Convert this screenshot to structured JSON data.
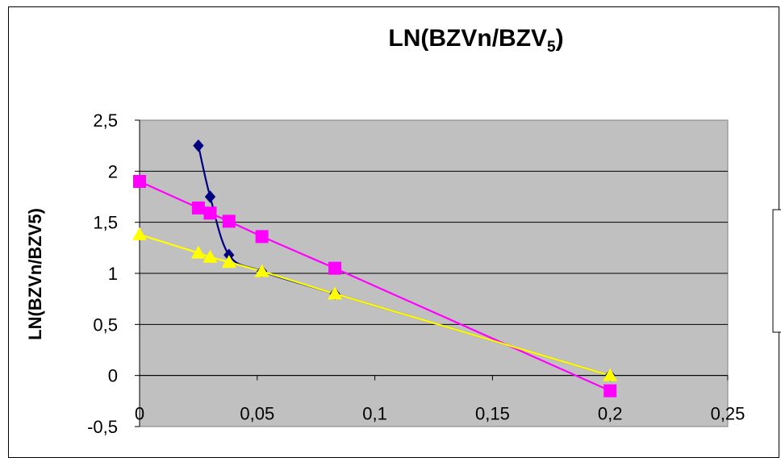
{
  "chart_data": {
    "type": "scatter",
    "title_main": "LN(BZVn/BZV",
    "title_sub": "5",
    "title_close": ")",
    "xlabel": "",
    "ylabel": "LN(BZVn/BZV5)",
    "xlim": [
      0,
      0.25
    ],
    "ylim": [
      -0.5,
      2.5
    ],
    "x_ticks": [
      0,
      0.05,
      0.1,
      0.15,
      0.2,
      0.25
    ],
    "x_tick_labels": [
      "0",
      "0,05",
      "0,1",
      "0,15",
      "0,2",
      "0,25"
    ],
    "y_ticks": [
      2.5,
      2,
      1.5,
      1,
      0.5,
      0,
      -0.5
    ],
    "y_tick_labels": [
      "2,5",
      "2",
      "1,5",
      "1",
      "0,5",
      "0",
      "-0,5"
    ],
    "grid": "horizontal",
    "plot_background": "#c0c0c0",
    "legend_placement": "right",
    "series": [
      {
        "marker": "diamond",
        "color": "#000080",
        "smooth": true,
        "points": [
          [
            0.025,
            2.25
          ],
          [
            0.03,
            1.75
          ],
          [
            0.038,
            1.18
          ],
          [
            0.052,
            1.02
          ],
          [
            0.083,
            0.8
          ],
          [
            0.2,
            0.0
          ]
        ]
      },
      {
        "marker": "square",
        "color": "#ff00ff",
        "smooth": false,
        "points": [
          [
            0,
            1.9
          ],
          [
            0.025,
            1.64
          ],
          [
            0.03,
            1.59
          ],
          [
            0.038,
            1.51
          ],
          [
            0.052,
            1.36
          ],
          [
            0.083,
            1.05
          ],
          [
            0.2,
            -0.15
          ]
        ]
      },
      {
        "marker": "triangle",
        "color": "#ffff00",
        "smooth": false,
        "points": [
          [
            0,
            1.38
          ],
          [
            0.025,
            1.2
          ],
          [
            0.03,
            1.16
          ],
          [
            0.038,
            1.11
          ],
          [
            0.052,
            1.02
          ],
          [
            0.083,
            0.8
          ],
          [
            0.2,
            0.0
          ]
        ]
      }
    ]
  }
}
